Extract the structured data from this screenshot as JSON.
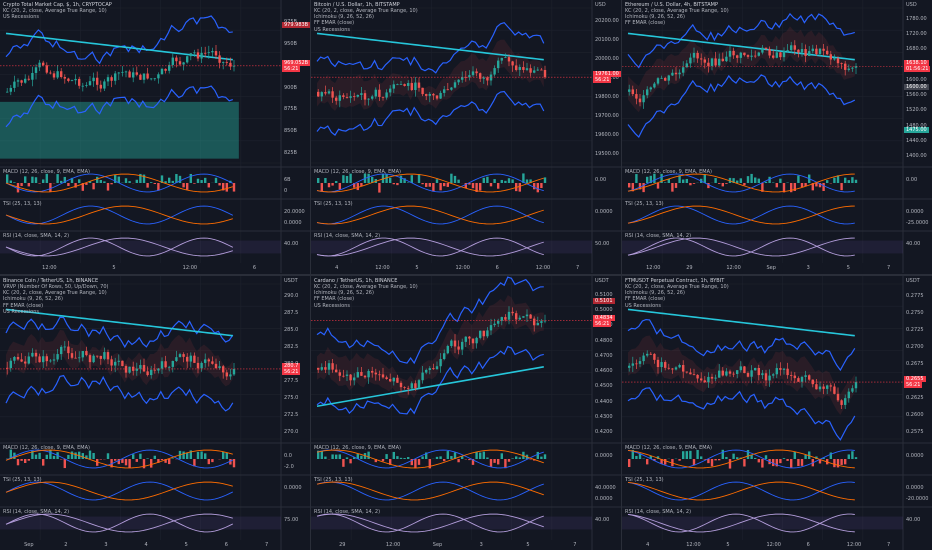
{
  "colors": {
    "bg": "#131722",
    "grid": "#1e222d",
    "up": "#26a69a",
    "down": "#ef5350",
    "kc": "#2962ff",
    "ema": "#26c6da",
    "ichi": "#a8a8a8",
    "accent": "#f23645"
  },
  "charts": [
    {
      "id": "c0",
      "title": "Crypto Total Market Cap, $, 1h, CRYPTOCAP",
      "lines": [
        "KC (20, 2, close, Average True Range, 10)",
        "US Recessions"
      ],
      "yunit": "",
      "yticks": [
        "975B",
        "950B",
        "925B",
        "900B",
        "875B",
        "850B",
        "825B"
      ],
      "price_tag": "969.052B",
      "price_tag2": "56:21",
      "hi_tag": "979.983B",
      "xticks": [
        "12:00",
        "5",
        "12:00",
        "6"
      ],
      "sub": [
        {
          "label": "MACD (12, 26, close, 9, EMA, EMA)",
          "ticks": [
            "6B",
            "0"
          ]
        },
        {
          "label": "TSI (25, 13, 13)",
          "ticks": [
            "20.0000",
            "0.0000"
          ]
        },
        {
          "label": "RSI (14, close, SMA, 14, 2)",
          "ticks": [
            "40.00"
          ]
        }
      ]
    },
    {
      "id": "c1",
      "title": "Bitcoin / U.S. Dollar, 1h, BITSTAMP",
      "lines": [
        "KC (20, 2, close, Average True Range, 10)",
        "Ichimoku (9, 26, 52, 26)",
        "FF EMAR (close)",
        "US Recessions"
      ],
      "yunit": "USD",
      "yticks": [
        "20200.00",
        "20100.00",
        "20000.00",
        "19900.00",
        "19800.00",
        "19700.00",
        "19600.00",
        "19500.00"
      ],
      "price_tag": "19761.00",
      "price_tag2": "56:21",
      "xticks": [
        "4",
        "12:00",
        "5",
        "12:00",
        "6",
        "12:00",
        "7"
      ],
      "sub": [
        {
          "label": "MACD (12, 26, close, 9, EMA, EMA)",
          "ticks": [
            "0.00"
          ]
        },
        {
          "label": "TSI (25, 13, 13)",
          "ticks": [
            "0.0000"
          ]
        },
        {
          "label": "RSI (14, close, SMA, 14, 2)",
          "ticks": [
            "50.00"
          ]
        }
      ]
    },
    {
      "id": "c2",
      "title": "Ethereum / U.S. Dollar, 4h, BITSTAMP",
      "lines": [
        "KC (20, 2, close, Average True Range, 10)",
        "Ichimoku (9, 26, 52, 26)",
        "FF EMAR (close)"
      ],
      "yunit": "USD",
      "yticks": [
        "1780.00",
        "1720.00",
        "1680.00",
        "1640.00",
        "1600.00",
        "1560.00",
        "1520.00",
        "1480.00",
        "1440.00",
        "1400.00"
      ],
      "price_tag": "1638.10",
      "price_tag2": "01:56:21",
      "lo_tag": "1475.00",
      "mid_tag": "1600.00",
      "xticks": [
        "12:00",
        "29",
        "12:00",
        "Sep",
        "3",
        "5",
        "7"
      ],
      "sub": [
        {
          "label": "MACD (12, 26, close, 9, EMA, EMA)",
          "ticks": [
            "0.00"
          ]
        },
        {
          "label": "TSI (25, 13, 13)",
          "ticks": [
            "0.0000",
            "-25.0000"
          ]
        },
        {
          "label": "RSI (14, close, SMA, 14, 2)",
          "ticks": [
            "40.00"
          ]
        }
      ]
    },
    {
      "id": "c3",
      "title": "Binance Coin / TetherUS, 1h, BINANCE",
      "lines": [
        "VRVP (Number Of Rows, 50, Up/Down, 70)",
        "KC (20, 2, close, Average True Range, 10)",
        "Ichimoku (9, 26, 52, 26)",
        "FF EMAR (close)",
        "US Recessions"
      ],
      "yunit": "USDT",
      "yticks": [
        "290.0",
        "287.5",
        "285.0",
        "282.5",
        "280.0",
        "277.5",
        "275.0",
        "272.5",
        "270.0"
      ],
      "price_tag": "280.7",
      "price_tag2": "56:21",
      "xticks": [
        "Sep",
        "2",
        "3",
        "4",
        "5",
        "6",
        "7"
      ],
      "sub": [
        {
          "label": "MACD (12, 26, close, 9, EMA, EMA)",
          "ticks": [
            "0.0",
            "-2.0"
          ]
        },
        {
          "label": "TSI (25, 13, 13)",
          "ticks": [
            "0.0000"
          ]
        },
        {
          "label": "RSI (14, close, SMA, 14, 2)",
          "ticks": [
            "75.00"
          ]
        }
      ]
    },
    {
      "id": "c4",
      "title": "Cardano / TetherUS, 1h, BINANCE",
      "lines": [
        "KC (20, 2, close, Average True Range, 10)",
        "Ichimoku (9, 26, 52, 26)",
        "FF EMAR (close)",
        "US Recessions"
      ],
      "yunit": "USDT",
      "yticks": [
        "0.5100",
        "0.5000",
        "0.4900",
        "0.4800",
        "0.4700",
        "0.4600",
        "0.4500",
        "0.4400",
        "0.4300",
        "0.4200"
      ],
      "price_tag": "0.4834",
      "price_tag2": "56:21",
      "hi_tag": "0.5101",
      "xticks": [
        "29",
        "12:00",
        "Sep",
        "3",
        "5",
        "7"
      ],
      "sub": [
        {
          "label": "MACD (12, 26, close, 9, EMA, EMA)",
          "ticks": [
            "0.0000"
          ]
        },
        {
          "label": "TSI (25, 13, 13)",
          "ticks": [
            "40.0000",
            "0.0000"
          ]
        },
        {
          "label": "RSI (14, close, SMA, 14, 2)",
          "ticks": [
            "40.00"
          ]
        }
      ]
    },
    {
      "id": "c5",
      "title": "FTMUSDT Perpetual Contract, 1h, BYBIT",
      "lines": [
        "KC (20, 2, close, Average True Range, 10)",
        "Ichimoku (9, 26, 52, 26)",
        "FF EMAR (close)",
        "US Recessions"
      ],
      "yunit": "USDT",
      "yticks": [
        "0.2775",
        "0.2750",
        "0.2725",
        "0.2700",
        "0.2675",
        "0.2650",
        "0.2625",
        "0.2600",
        "0.2575"
      ],
      "price_tag": "0.2655",
      "price_tag2": "56:21",
      "xticks": [
        "4",
        "12:00",
        "5",
        "12:00",
        "6",
        "12:00",
        "7"
      ],
      "sub": [
        {
          "label": "MACD (12, 26, close, 9, EMA, EMA)",
          "ticks": [
            "0.0000"
          ]
        },
        {
          "label": "TSI (25, 13, 13)",
          "ticks": [
            "0.0000",
            "-20.0000"
          ]
        },
        {
          "label": "RSI (14, close, SMA, 14, 2)",
          "ticks": [
            "40.00"
          ]
        }
      ]
    }
  ]
}
